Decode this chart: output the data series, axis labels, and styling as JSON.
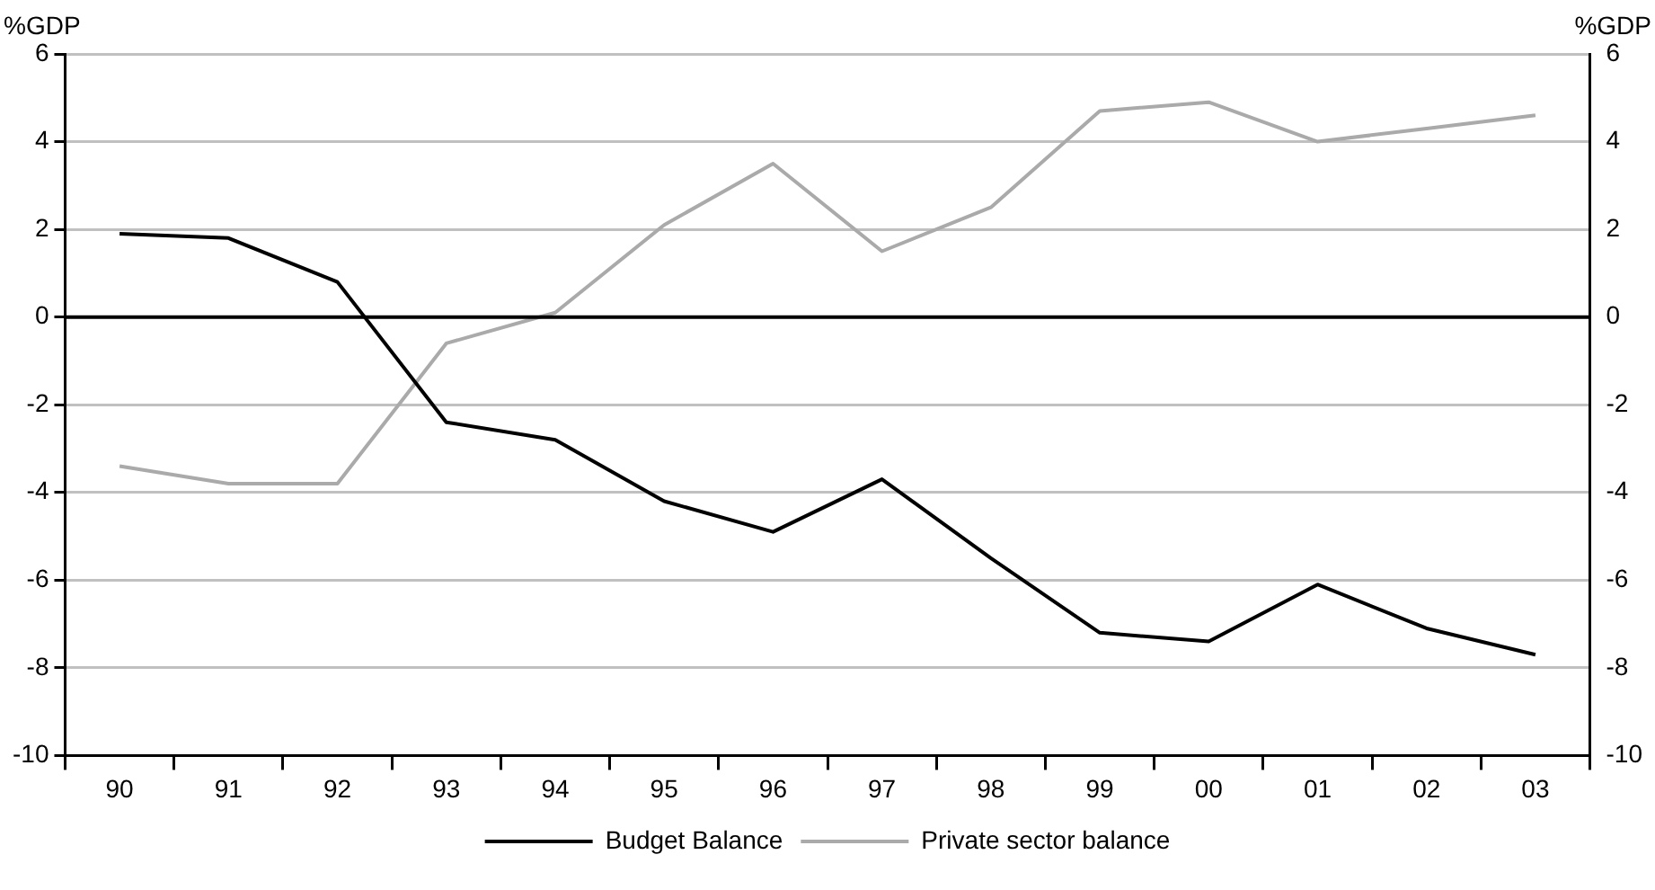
{
  "chart_data": {
    "type": "line",
    "ylabel": "%GDP",
    "y2label": "%GDP",
    "categories": [
      "90",
      "91",
      "92",
      "93",
      "94",
      "95",
      "96",
      "97",
      "98",
      "99",
      "00",
      "01",
      "02",
      "03"
    ],
    "series": [
      {
        "name": "Budget Balance",
        "color": "#000000",
        "values": [
          1.9,
          1.8,
          0.8,
          -2.4,
          -2.8,
          -4.2,
          -4.9,
          -3.7,
          -5.5,
          -7.2,
          -7.4,
          -6.1,
          -7.1,
          -7.7
        ]
      },
      {
        "name": "Private sector balance",
        "color": "#aaaaaa",
        "values": [
          -3.4,
          -3.8,
          -3.8,
          -0.6,
          0.1,
          2.1,
          3.5,
          1.5,
          2.5,
          4.7,
          4.9,
          4.0,
          4.3,
          4.6
        ]
      }
    ],
    "ylim": [
      -10,
      6
    ],
    "yticks": [
      -10,
      -8,
      -6,
      -4,
      -2,
      0,
      2,
      4,
      6
    ],
    "y2lim": [
      -10,
      6
    ],
    "y2ticks": [
      -10,
      -8,
      -6,
      -4,
      -2,
      0,
      2,
      4,
      6
    ],
    "ref_lines": [
      {
        "axis": "y",
        "value": 0,
        "color": "#000000"
      }
    ],
    "grid": "y",
    "legend": "bottom",
    "marker": "none",
    "line_style": "solid"
  }
}
